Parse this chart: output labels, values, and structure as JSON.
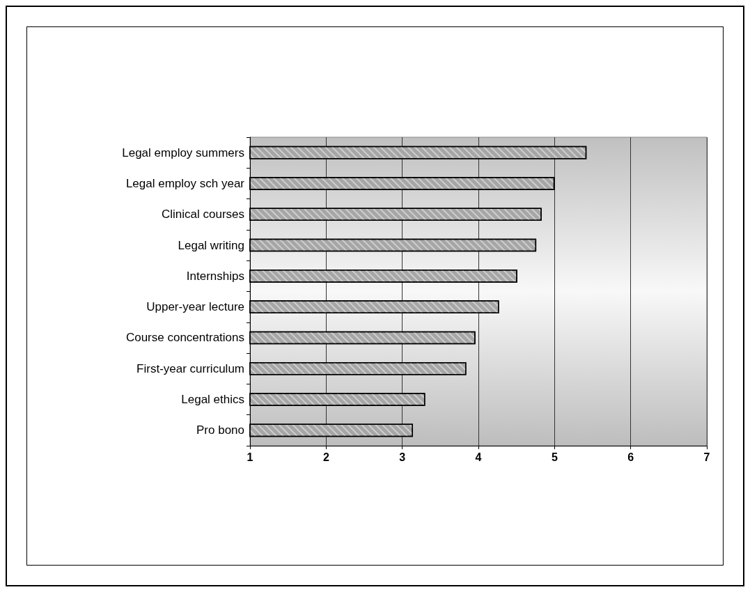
{
  "chart_data": {
    "type": "bar",
    "orientation": "horizontal",
    "categories": [
      "Legal employ summers",
      "Legal employ sch year",
      "Clinical courses",
      "Legal writing",
      "Internships",
      "Upper-year lecture",
      "Course concentrations",
      "First-year curriculum",
      "Legal ethics",
      "Pro bono"
    ],
    "values": [
      5.42,
      5.0,
      4.83,
      4.76,
      4.51,
      4.27,
      3.96,
      3.84,
      3.3,
      3.14
    ],
    "color": "#a6a6a6",
    "xlim": [
      1,
      7
    ],
    "xticks": [
      1,
      2,
      3,
      4,
      5,
      6,
      7
    ],
    "grid": "x"
  }
}
